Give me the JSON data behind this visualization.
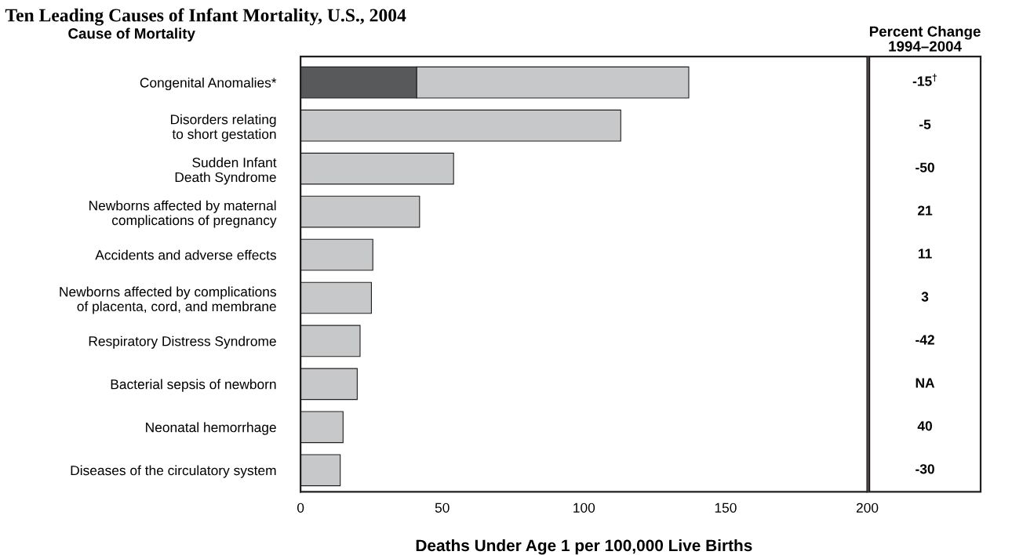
{
  "chart_data": [
    {
      "type": "bar",
      "orientation": "horizontal",
      "stacked": true,
      "title": "Ten Leading Causes of Infant Mortality, U.S., 2004",
      "ylabel": "Cause of Mortality",
      "xlabel": "Deaths Under Age 1 per 100,000 Live Births",
      "categories": [
        "Congenital Anomalies*",
        "Disorders relating\nto short gestation",
        "Sudden Infant\nDeath Syndrome",
        "Newborns affected by maternal\ncomplications of pregnancy",
        "Accidents and adverse effects",
        "Newborns affected by complications\nof placenta, cord, and membrane",
        "Respiratory Distress Syndrome",
        "Bacterial sepsis of newborn",
        "Neonatal hemorrhage",
        "Diseases of the circulatory system"
      ],
      "series": [
        {
          "color": "#58595b",
          "values": [
            41,
            null,
            null,
            null,
            null,
            null,
            null,
            null,
            null,
            null
          ]
        },
        {
          "color": "#c7c8ca",
          "values": [
            96,
            113,
            54,
            42,
            25.5,
            25,
            21,
            20,
            15,
            14
          ]
        }
      ],
      "xlim": [
        0,
        200
      ],
      "xticks": [
        0,
        50,
        100,
        150,
        200
      ],
      "grid": false,
      "legend": false
    },
    {
      "type": "other",
      "title": "Percent Change\n1994–2004",
      "annotations": [
        "-15$^{†}$",
        "-5",
        "-50",
        "21",
        "11",
        "3",
        "-42",
        "NA",
        "40",
        "-30"
      ]
    }
  ]
}
